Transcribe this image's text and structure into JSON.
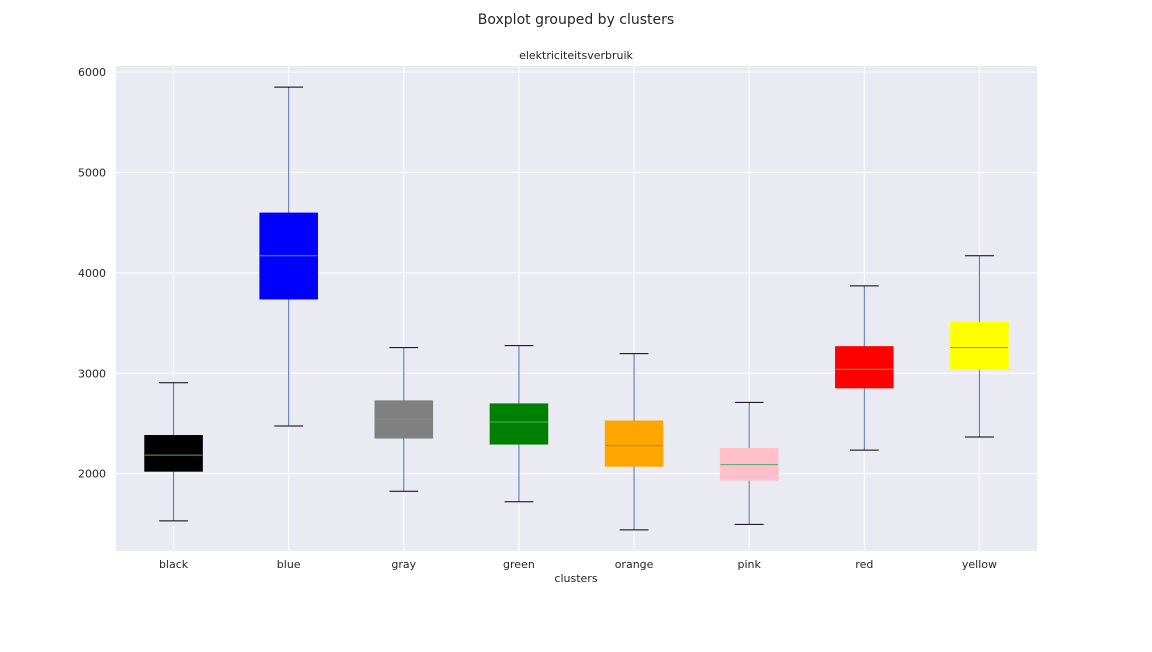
{
  "chart_data": {
    "type": "boxplot",
    "suptitle": "Boxplot grouped by clusters",
    "title": "elektriciteitsverbruik",
    "xlabel": "clusters",
    "ylabel": "",
    "ylim": [
      1230,
      6060
    ],
    "yticks": [
      2000,
      3000,
      4000,
      5000,
      6000
    ],
    "grid": true,
    "background_color": "#EAEAF2",
    "grid_color": "#FFFFFF",
    "whisker_color": "#4C72B0",
    "cap_color": "#000000",
    "median_color": "#55A868",
    "categories": [
      "black",
      "blue",
      "gray",
      "green",
      "orange",
      "pink",
      "red",
      "yellow"
    ],
    "boxes": [
      {
        "label": "black",
        "color": "#000000",
        "whislo": 1530,
        "q1": 2025,
        "med": 2185,
        "q3": 2380,
        "whishi": 2905
      },
      {
        "label": "blue",
        "color": "#0000FF",
        "whislo": 2475,
        "q1": 3740,
        "med": 4170,
        "q3": 4595,
        "whishi": 5850
      },
      {
        "label": "gray",
        "color": "#808080",
        "whislo": 1825,
        "q1": 2355,
        "med": 2540,
        "q3": 2725,
        "whishi": 3255
      },
      {
        "label": "green",
        "color": "#008000",
        "whislo": 1720,
        "q1": 2295,
        "med": 2515,
        "q3": 2695,
        "whishi": 3275
      },
      {
        "label": "orange",
        "color": "#FFA500",
        "whislo": 1440,
        "q1": 2075,
        "med": 2280,
        "q3": 2525,
        "whishi": 3195
      },
      {
        "label": "pink",
        "color": "#FFC0CB",
        "whislo": 1495,
        "q1": 1935,
        "med": 2090,
        "q3": 2250,
        "whishi": 2710
      },
      {
        "label": "red",
        "color": "#FF0000",
        "whislo": 2235,
        "q1": 2855,
        "med": 3040,
        "q3": 3265,
        "whishi": 3870
      },
      {
        "label": "yellow",
        "color": "#FFFF00",
        "whislo": 2365,
        "q1": 3040,
        "med": 3255,
        "q3": 3505,
        "whishi": 4170
      }
    ]
  }
}
